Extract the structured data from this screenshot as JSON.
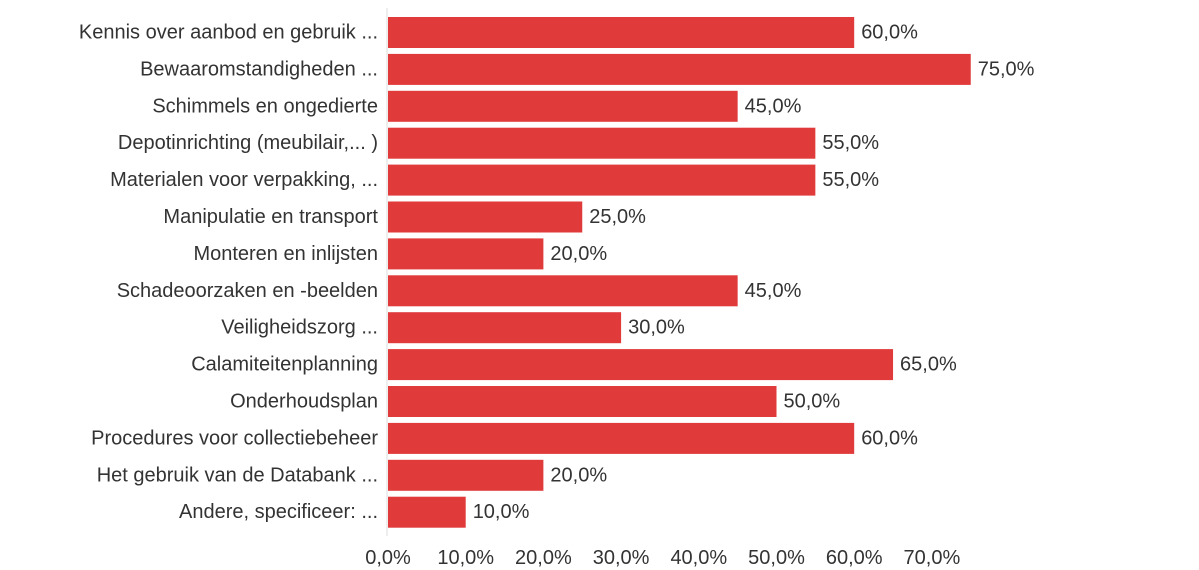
{
  "chart_data": {
    "type": "bar",
    "orientation": "horizontal",
    "categories": [
      "Kennis over aanbod en gebruik ...",
      "Bewaaromstandigheden ...",
      "Schimmels en ongedierte",
      "Depotinrichting (meubilair,... )",
      "Materialen voor verpakking, ...",
      "Manipulatie en transport",
      "Monteren en inlijsten",
      "Schadeoorzaken en -beelden",
      "Veiligheidszorg ...",
      "Calamiteitenplanning",
      "Onderhoudsplan",
      "Procedures voor collectiebeheer",
      "Het gebruik van de Databank ...",
      "Andere, specificeer: ..."
    ],
    "values": [
      60,
      75,
      45,
      55,
      55,
      25,
      20,
      45,
      30,
      65,
      50,
      60,
      20,
      10
    ],
    "value_labels": [
      "60,0%",
      "75,0%",
      "45,0%",
      "55,0%",
      "55,0%",
      "25,0%",
      "20,0%",
      "45,0%",
      "30,0%",
      "65,0%",
      "50,0%",
      "60,0%",
      "20,0%",
      "10,0%"
    ],
    "x_ticks": [
      0,
      10,
      20,
      30,
      40,
      50,
      60,
      70
    ],
    "x_tick_labels": [
      "0,0%",
      "10,0%",
      "20,0%",
      "30,0%",
      "40,0%",
      "50,0%",
      "60,0%",
      "70,0%"
    ],
    "xlim": [
      0,
      75
    ],
    "title": "",
    "xlabel": "",
    "ylabel": "",
    "grid": false,
    "bar_color": "#e03a3a",
    "text_color": "#333333",
    "axis_color": "#dddddd"
  }
}
